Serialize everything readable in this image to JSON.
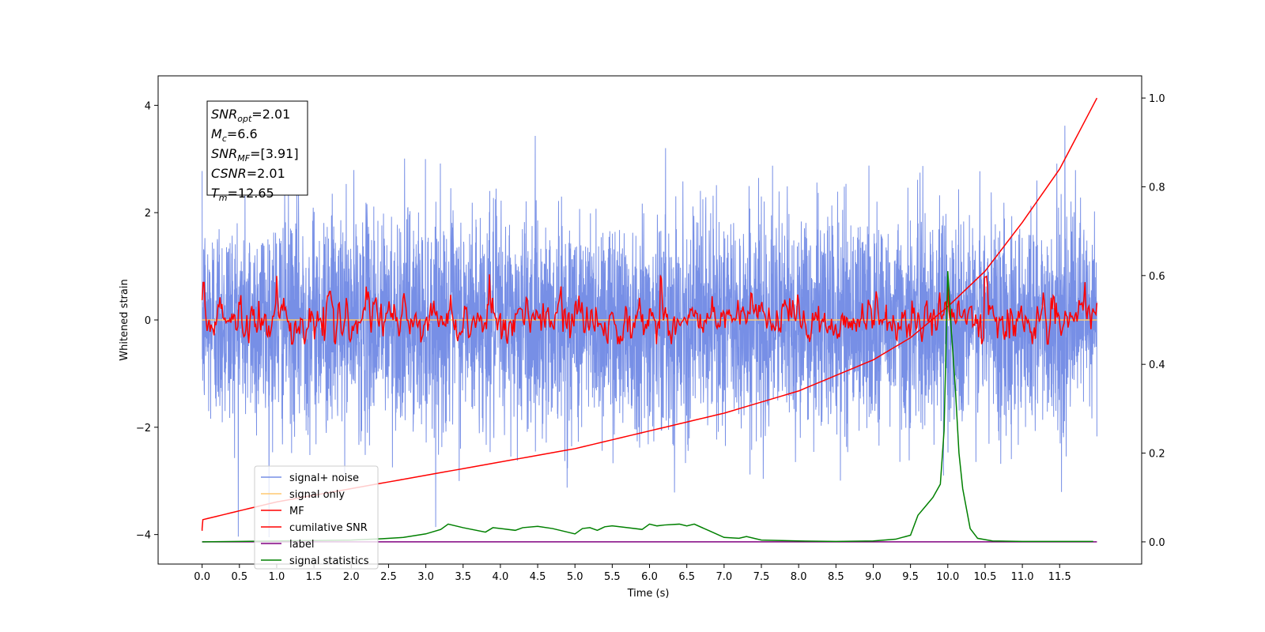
{
  "chart_data": {
    "type": "line",
    "title": "",
    "xlabel": "Time (s)",
    "ylabel": "Whitened strain",
    "ylabel_right": "",
    "xlim": [
      -0.59,
      12.6
    ],
    "ylim": [
      -4.55,
      4.55
    ],
    "ylim_right": [
      -0.05,
      1.05
    ],
    "xticks": [
      "0.0",
      "0.5",
      "1.0",
      "1.5",
      "2.0",
      "2.5",
      "3.0",
      "3.5",
      "4.0",
      "4.5",
      "5.0",
      "5.5",
      "6.0",
      "6.5",
      "7.0",
      "7.5",
      "8.0",
      "8.5",
      "9.0",
      "9.5",
      "10.0",
      "10.5",
      "11.0",
      "11.5"
    ],
    "yticks_left": [
      "−4",
      "−2",
      "0",
      "2",
      "4"
    ],
    "yticks_right": [
      "0.0",
      "0.2",
      "0.4",
      "0.6",
      "0.8",
      "1.0"
    ],
    "grid": false,
    "legend_position": "lower-left",
    "colors": {
      "signal_noise": "#778fe6",
      "signal_only": "#ffc870",
      "mf": "#ff0000",
      "cumulative": "#ff0000",
      "label": "#800080",
      "statistics": "#008000"
    },
    "series": [
      {
        "name": "signal+ noise",
        "axis": "left",
        "note": "white noise band, std ~1.0, spikes up to 4.1 and down to -4.05",
        "x_range": [
          0,
          12
        ],
        "std": 1.0
      },
      {
        "name": "signal only",
        "axis": "left",
        "x": [
          0,
          12
        ],
        "y": [
          0,
          0
        ]
      },
      {
        "name": "MF",
        "axis": "left",
        "x_range": [
          0,
          12
        ],
        "std": 0.2,
        "start": 0.37,
        "peaks": [
          [
            0.02,
            0.7
          ],
          [
            1.0,
            0.82
          ],
          [
            3.85,
            0.85
          ],
          [
            6.15,
            0.83
          ],
          [
            10.0,
            0.65
          ],
          [
            10.5,
            0.8
          ]
        ]
      },
      {
        "name": "cumilative SNR",
        "axis": "right",
        "x": [
          0.0,
          0.01,
          0.5,
          1.0,
          2.0,
          3.0,
          4.0,
          5.0,
          6.0,
          7.0,
          8.0,
          9.0,
          9.5,
          10.0,
          10.5,
          11.0,
          11.5,
          12.0
        ],
        "y": [
          0.03,
          0.05,
          0.07,
          0.09,
          0.12,
          0.15,
          0.18,
          0.21,
          0.25,
          0.29,
          0.34,
          0.41,
          0.46,
          0.53,
          0.61,
          0.72,
          0.84,
          1.0
        ]
      },
      {
        "name": "label",
        "axis": "right",
        "x": [
          0,
          12
        ],
        "y": [
          0.0,
          0.0
        ]
      },
      {
        "name": "signal statistics",
        "axis": "right",
        "x": [
          0.0,
          0.5,
          1.0,
          1.5,
          2.0,
          2.4,
          2.7,
          3.0,
          3.2,
          3.3,
          3.5,
          3.8,
          3.9,
          4.0,
          4.2,
          4.3,
          4.5,
          4.7,
          4.9,
          5.0,
          5.1,
          5.2,
          5.3,
          5.4,
          5.5,
          5.7,
          5.9,
          6.0,
          6.1,
          6.2,
          6.4,
          6.5,
          6.6,
          6.8,
          7.0,
          7.2,
          7.3,
          7.5,
          8.0,
          8.5,
          9.0,
          9.3,
          9.5,
          9.6,
          9.7,
          9.8,
          9.9,
          9.95,
          10.0,
          10.05,
          10.1,
          10.15,
          10.2,
          10.3,
          10.4,
          10.6,
          11.0,
          11.5,
          11.95
        ],
        "y": [
          0.0,
          0.001,
          0.002,
          0.003,
          0.004,
          0.007,
          0.01,
          0.018,
          0.028,
          0.04,
          0.032,
          0.022,
          0.032,
          0.03,
          0.026,
          0.032,
          0.035,
          0.03,
          0.022,
          0.018,
          0.03,
          0.032,
          0.026,
          0.034,
          0.036,
          0.032,
          0.028,
          0.04,
          0.036,
          0.038,
          0.04,
          0.036,
          0.04,
          0.025,
          0.01,
          0.008,
          0.012,
          0.004,
          0.002,
          0.001,
          0.002,
          0.006,
          0.015,
          0.06,
          0.08,
          0.1,
          0.13,
          0.25,
          0.61,
          0.47,
          0.35,
          0.2,
          0.12,
          0.03,
          0.008,
          0.002,
          0.001,
          0.001,
          0.001
        ]
      }
    ],
    "annotations": [
      {
        "base": "SNR",
        "sub": "opt",
        "value": "=2.01"
      },
      {
        "base": "M",
        "sub": "c",
        "value": "=6.6"
      },
      {
        "base": "SNR",
        "sub": "MF",
        "value": "=[3.91]"
      },
      {
        "base": "CSNR",
        "sub": "",
        "value": "=2.01"
      },
      {
        "base": "T",
        "sub": "m",
        "value": "=12.65"
      }
    ]
  }
}
